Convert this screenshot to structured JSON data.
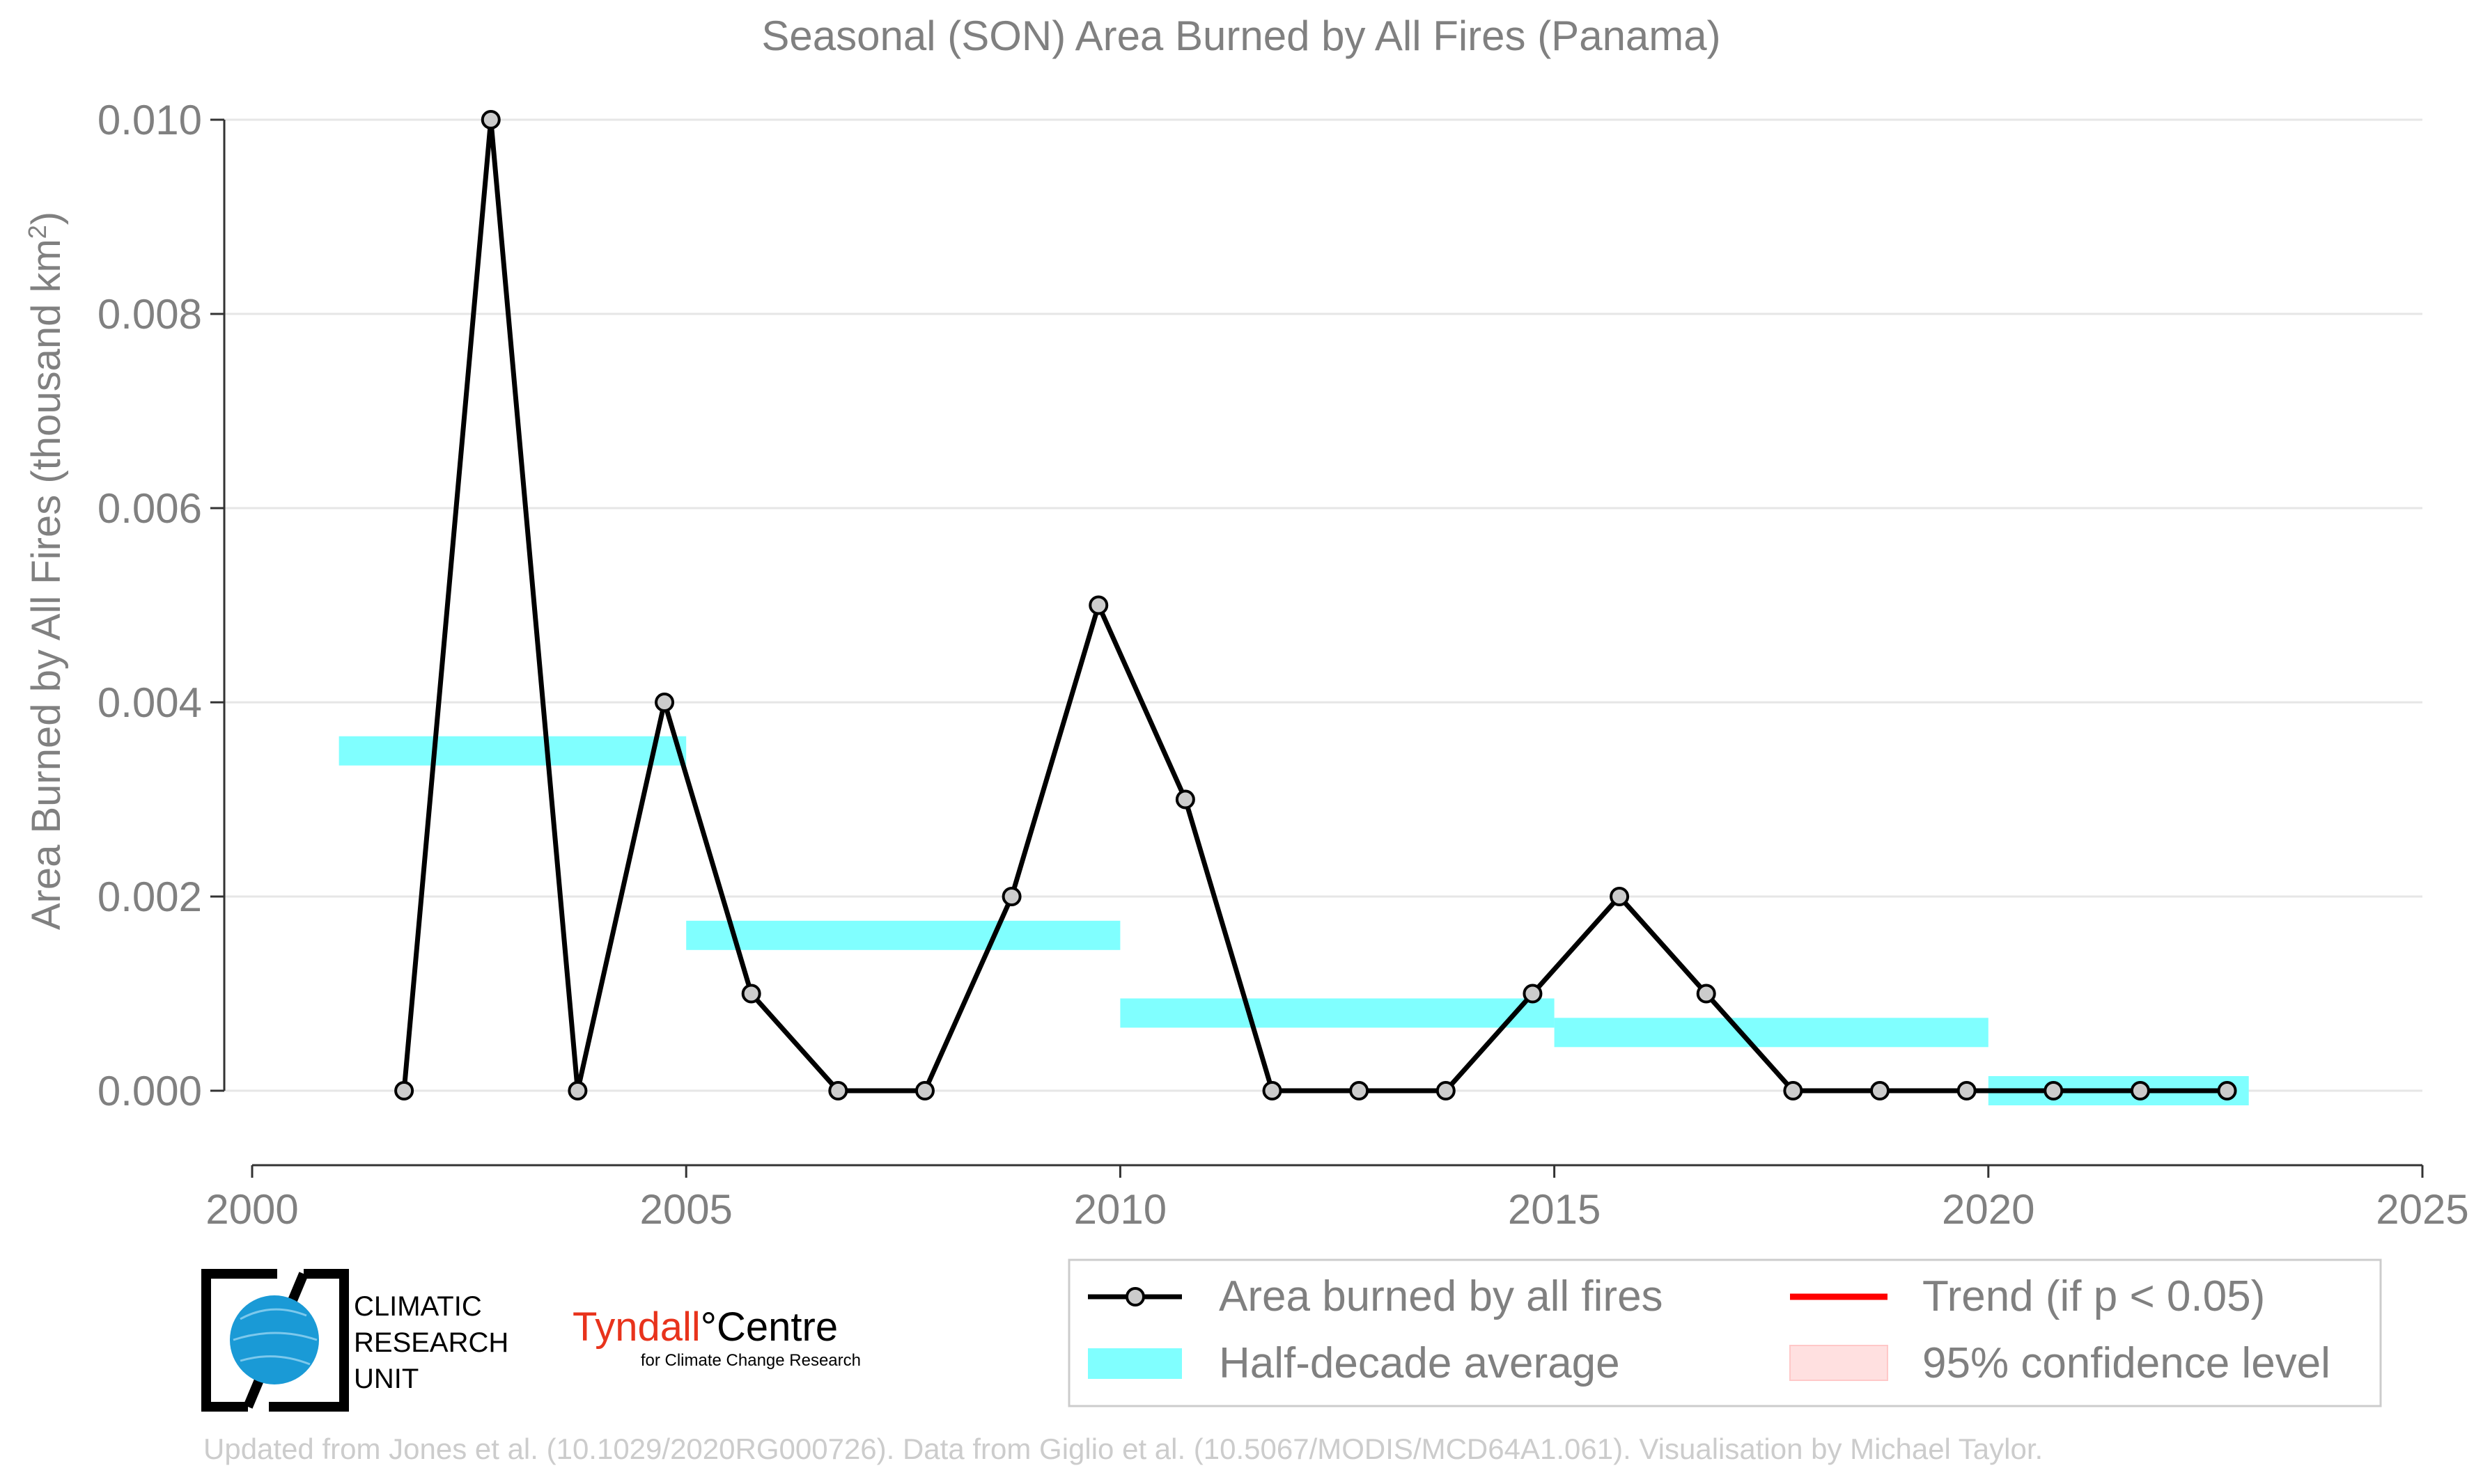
{
  "chart_data": {
    "type": "line",
    "title": "Seasonal (SON) Area Burned by All Fires (Panama)",
    "ylabel_main": "Area Burned by All Fires (thousand km",
    "ylabel_sup": "2",
    "ylabel_end": ")",
    "xlabel": "",
    "xlim": [
      2000,
      2025
    ],
    "ylim": [
      -0.00075,
      0.0105
    ],
    "x_ticks": [
      2000,
      2005,
      2010,
      2015,
      2020,
      2025
    ],
    "x_tick_labels": [
      "2000",
      "2005",
      "2010",
      "2015",
      "2020",
      "2025"
    ],
    "y_ticks": [
      0.0,
      0.002,
      0.004,
      0.006,
      0.008,
      0.01
    ],
    "y_tick_labels": [
      "0.000",
      "0.002",
      "0.004",
      "0.006",
      "0.008",
      "0.010"
    ],
    "grid": "horizontal",
    "series": [
      {
        "name": "Area burned by all fires",
        "color": "#000000",
        "marker_fill": "#cccccc",
        "x": [
          2001.75,
          2002.75,
          2003.75,
          2004.75,
          2005.75,
          2006.75,
          2007.75,
          2008.75,
          2009.75,
          2010.75,
          2011.75,
          2012.75,
          2013.75,
          2014.75,
          2015.75,
          2016.75,
          2017.75,
          2018.75,
          2019.75,
          2020.75,
          2021.75,
          2022.75
        ],
        "values": [
          0.0,
          0.01,
          0.0,
          0.004,
          0.001,
          0.0,
          0.0,
          0.002,
          0.005,
          0.003,
          0.0,
          0.0,
          0.0,
          0.001,
          0.002,
          0.001,
          0.0,
          0.0,
          0.0,
          0.0,
          0.0,
          0.0
        ]
      }
    ],
    "half_decade_average": {
      "name": "Half-decade average",
      "color": "#80ffff",
      "segments": [
        {
          "x0": 2001,
          "x1": 2005,
          "value": 0.0035
        },
        {
          "x0": 2005,
          "x1": 2010,
          "value": 0.0016
        },
        {
          "x0": 2010,
          "x1": 2015,
          "value": 0.0008
        },
        {
          "x0": 2015,
          "x1": 2020,
          "value": 0.0006
        },
        {
          "x0": 2020,
          "x1": 2023,
          "value": 0.0
        }
      ]
    },
    "legend": {
      "placement": "bottom-right",
      "entries": [
        {
          "key": "line",
          "label": "Area burned by all fires",
          "color": "#000000"
        },
        {
          "key": "trend",
          "label": "Trend (if p < 0.05)",
          "color": "#ff0000"
        },
        {
          "key": "avg",
          "label": "Half-decade average",
          "color": "#80ffff"
        },
        {
          "key": "ci",
          "label": "95% confidence level",
          "color": "#ffe0e0"
        }
      ]
    }
  },
  "logos": {
    "cru": {
      "line1": "CLIMATIC",
      "line2": "RESEARCH",
      "line3": "UNIT"
    },
    "tyndall": {
      "name_a": "Tyndall",
      "degree": "°",
      "name_b": "Centre",
      "tagline": "for Climate Change Research"
    }
  },
  "footer": "Updated from Jones et al. (10.1029/2020RG000726). Data from Giglio et al. (10.5067/MODIS/MCD64A1.061). Visualisation by Michael Taylor.",
  "colors": {
    "text_gray": "#808080",
    "grid": "#e6e6e6",
    "footer_text": "#cccccc",
    "tyndall_red": "#e8331c",
    "cru_blue": "#1a9ad6"
  }
}
